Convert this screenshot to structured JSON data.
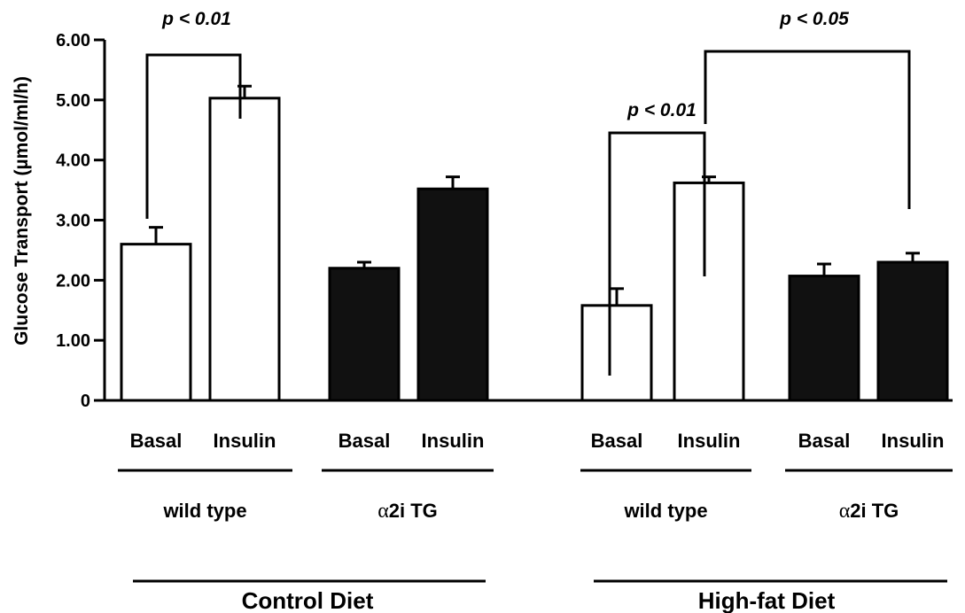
{
  "chart_data": {
    "type": "bar",
    "ylabel": "Glucose Transport (µmol/ml/h)",
    "ylim": [
      0,
      6
    ],
    "yticks": [
      "0",
      "1.00",
      "2.00",
      "3.00",
      "4.00",
      "5.00",
      "6.00"
    ],
    "categories": [
      "Basal",
      "Insulin",
      "Basal",
      "Insulin",
      "Basal",
      "Insulin",
      "Basal",
      "Insulin"
    ],
    "groups": [
      {
        "label_prefix": "",
        "label_greek": "",
        "label_main": "wild type",
        "diet": 0
      },
      {
        "label_prefix": "",
        "label_greek": "α",
        "label_main": "2i TG",
        "diet": 0
      },
      {
        "label_prefix": "",
        "label_greek": "",
        "label_main": "wild type",
        "diet": 1
      },
      {
        "label_prefix": "",
        "label_greek": "α",
        "label_main": "2i TG",
        "diet": 1
      }
    ],
    "diets": [
      "Control Diet",
      "High-fat Diet"
    ],
    "values": [
      2.6,
      5.03,
      2.2,
      3.52,
      1.58,
      3.62,
      2.07,
      2.3
    ],
    "errors": [
      0.28,
      0.2,
      0.1,
      0.2,
      0.28,
      0.1,
      0.2,
      0.15
    ],
    "fills": [
      "#ffffff",
      "#ffffff",
      "#111111",
      "#111111",
      "#ffffff",
      "#ffffff",
      "#111111",
      "#111111"
    ],
    "significance": [
      {
        "label": "p < 0.01"
      },
      {
        "label": "p < 0.01"
      },
      {
        "label": "p < 0.05"
      }
    ]
  }
}
